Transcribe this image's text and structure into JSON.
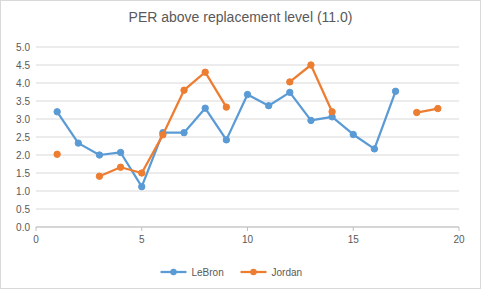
{
  "chart_data": {
    "type": "line",
    "title": "PER above replacement level (11.0)",
    "x": [
      1,
      2,
      3,
      4,
      5,
      6,
      7,
      8,
      9,
      10,
      11,
      12,
      13,
      14,
      15,
      16,
      17,
      18,
      19
    ],
    "series": [
      {
        "name": "LeBron",
        "color": "#5b9bd5",
        "marker": "circle",
        "line_style": "solid",
        "values": [
          3.2,
          2.33,
          2.0,
          2.07,
          1.12,
          2.62,
          2.62,
          3.3,
          2.42,
          3.68,
          3.37,
          3.74,
          2.96,
          3.06,
          2.57,
          2.17,
          3.77,
          null,
          null
        ]
      },
      {
        "name": "Jordan",
        "color": "#ed7d31",
        "marker": "circle",
        "line_style": "solid",
        "values": [
          2.02,
          null,
          1.41,
          1.66,
          1.5,
          2.56,
          3.8,
          4.3,
          3.33,
          null,
          null,
          4.03,
          4.5,
          3.2,
          null,
          null,
          null,
          3.18,
          3.29
        ]
      }
    ],
    "xlim": [
      0,
      20
    ],
    "xticks": [
      0,
      5,
      10,
      15,
      20
    ],
    "ylim": [
      0,
      5
    ],
    "yticks": [
      {
        "value": 0,
        "label": "0.0"
      },
      0.5,
      {
        "value": 1,
        "label": "1.0"
      },
      1.5,
      {
        "value": 2,
        "label": "2.0"
      },
      2.5,
      {
        "value": 3,
        "label": "3.0"
      },
      3.5,
      {
        "value": 4,
        "label": "4.0"
      },
      4.5,
      {
        "value": 5,
        "label": "5.0"
      }
    ],
    "grid": true,
    "legend": "bottom"
  }
}
